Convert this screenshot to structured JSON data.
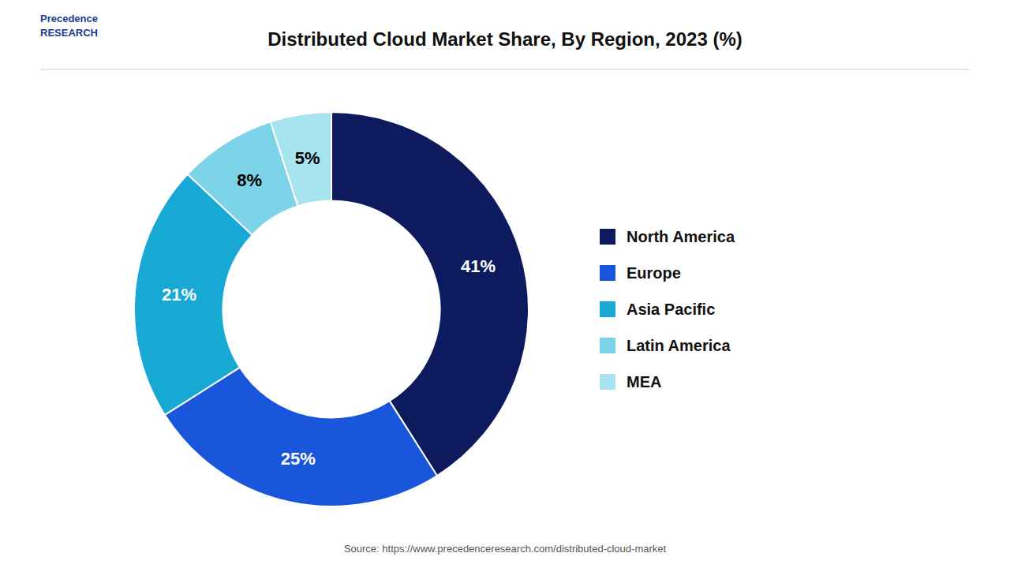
{
  "chart_data": {
    "type": "donut",
    "title": "Distributed Cloud Market Share, By Region, 2023 (%)",
    "categories": [
      "North America",
      "Europe",
      "Asia Pacific",
      "Latin America",
      "MEA"
    ],
    "values": [
      41,
      25,
      21,
      8,
      5
    ],
    "value_labels": [
      "41%",
      "25%",
      "21%",
      "8%",
      "5%"
    ],
    "colors": [
      "#0d1b5e",
      "#1a56db",
      "#17a8d4",
      "#7dd4e8",
      "#a8e4f0"
    ],
    "data_labels": true,
    "legend": "right",
    "annotations": [
      "Precedence\nRESEARCH",
      "Source: https://www.precedenceresearch.com/distributed-cloud-market"
    ]
  }
}
